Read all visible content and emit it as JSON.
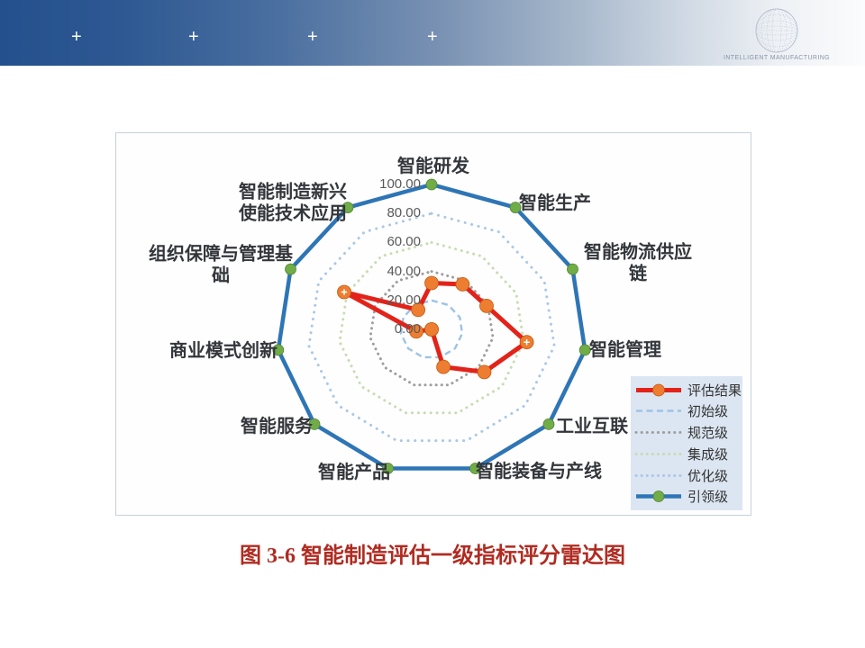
{
  "header": {
    "plus_marks": [
      "+",
      "+",
      "+",
      "+"
    ],
    "logo_text": "INTELLIGENT MANUFACTURING"
  },
  "chart_data": {
    "type": "radar",
    "categories": [
      "智能研发",
      "智能生产",
      "智能物流供应链",
      "智能管理",
      "工业互联",
      "智能装备与产线",
      "智能产品",
      "智能服务",
      "商业模式创新",
      "组织保障与管理基础",
      "智能制造新兴使能技术应用"
    ],
    "categories_display": [
      "智能研发",
      "智能生产",
      "智能物流供应链",
      "智能管理",
      "工业互联",
      "智能装备与产线",
      "智能产品",
      "智能服务",
      "商业模式创新",
      "组织保障与管理基\n础",
      "智能制造新兴\n使能技术应用"
    ],
    "axis_range": [
      0,
      100
    ],
    "axis_ticks": [
      "100.00",
      "80.00",
      "60.00",
      "40.00",
      "20.00",
      "0.00"
    ],
    "grid": false,
    "legend_position": "bottom-right",
    "series": [
      {
        "key": "result",
        "name": "评估结果",
        "style": "solid",
        "color": "#e2231a",
        "width": 5,
        "marker": "circle",
        "marker_color": "#ed7d31",
        "marker_edge": "#c55a11",
        "marker_size": 7.5,
        "plus_marker_indices": [
          3,
          9
        ],
        "values": [
          32,
          37,
          39,
          62,
          45,
          27,
          0,
          0,
          10,
          62,
          16
        ]
      },
      {
        "key": "initial",
        "name": "初始级",
        "style": "dash",
        "color": "#9dc3e6",
        "width": 2.4,
        "values": [
          20,
          20,
          20,
          20,
          20,
          20,
          20,
          20,
          20,
          20,
          20
        ]
      },
      {
        "key": "standard",
        "name": "规范级",
        "style": "dot",
        "color": "#9e9e9e",
        "width": 3,
        "gap": 6,
        "values": [
          40,
          40,
          40,
          40,
          40,
          40,
          40,
          40,
          40,
          40,
          40
        ]
      },
      {
        "key": "integrated",
        "name": "集成级",
        "style": "dot",
        "color": "#c7dcb2",
        "width": 3,
        "gap": 6.8,
        "values": [
          60,
          60,
          60,
          60,
          60,
          60,
          60,
          60,
          60,
          60,
          60
        ]
      },
      {
        "key": "optimized",
        "name": "优化级",
        "style": "dot",
        "color": "#aac7e5",
        "width": 3,
        "gap": 7.6,
        "values": [
          80,
          80,
          80,
          80,
          80,
          80,
          80,
          80,
          80,
          80,
          80
        ]
      },
      {
        "key": "leading",
        "name": "引领级",
        "style": "solid",
        "color": "#2e75b6",
        "width": 4.5,
        "marker": "circle",
        "marker_color": "#70ad47",
        "marker_edge": "#538135",
        "marker_size": 6,
        "values": [
          100,
          100,
          100,
          100,
          100,
          100,
          100,
          100,
          100,
          100,
          100
        ]
      }
    ]
  },
  "caption": "图 3-6 智能制造评估一级指标评分雷达图"
}
